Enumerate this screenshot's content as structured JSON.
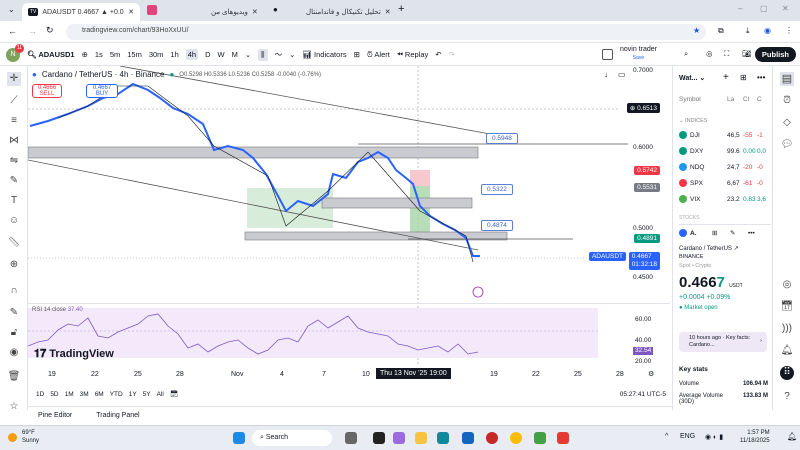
{
  "browser": {
    "tabs": [
      {
        "label": "ADAUSDT 0.4667 ▲ +0.09% no"
      },
      {
        "label": "ویدیوهای من"
      },
      {
        "label": "تحلیل تکنیکال و فاندامنتال"
      }
    ],
    "url": "tradingview.com/chart/93HoXxUU/"
  },
  "toolbar": {
    "avatar": "N",
    "badge": "11",
    "symbol": "ADAUSD1",
    "intervals": [
      "1s",
      "5m",
      "15m",
      "30m",
      "1h",
      "4h",
      "D",
      "W",
      "M"
    ],
    "active_interval": "4h",
    "indicators": "Indicators",
    "alert": "Alert",
    "replay": "Replay",
    "layout_name": "novin trader",
    "layout_sub": "Save",
    "publish": "Publish"
  },
  "chart": {
    "legend_title": "Cardano / TetherUS · 4h · Binance",
    "ohlc": "O0.5298 H0.5336 L0.5236 C0.5258 -0.0040 (-0.76%)",
    "sell_price": "0.4666",
    "sell_label": "SELL",
    "buy_price": "0.4667",
    "buy_label": "BUY",
    "price_axis": [
      "0.7000",
      "0.6000",
      "0.5000",
      "0.4500"
    ],
    "labels": {
      "crosshair": "0.6513",
      "red": "0.5742",
      "gray": "0.5531",
      "green": "0.4891",
      "symbol": "ADAUSDT",
      "last": "0.4667",
      "countdown": "01:32:18"
    },
    "callouts": [
      "0.5948",
      "0.5322",
      "0.4874"
    ],
    "colors": {
      "up": "#2962ff",
      "down": "#131722",
      "red": "#f23645",
      "green": "#089981",
      "rsi": "#7e57c2"
    }
  },
  "rsi": {
    "title": "RSI 14 close",
    "value_inline": "37.40",
    "axis": [
      "60.00",
      "40.00",
      "20.00"
    ],
    "value": "32.54"
  },
  "watermark": "TradingView",
  "time_axis": {
    "ticks": [
      "19",
      "22",
      "25",
      "28",
      "Nov",
      "4",
      "7",
      "10",
      "19",
      "22",
      "25",
      "28"
    ],
    "crosshair": "Thu 13 Nov '25  19:00"
  },
  "ranges": [
    "1D",
    "5D",
    "1M",
    "3M",
    "6M",
    "YTD",
    "1Y",
    "5Y",
    "All"
  ],
  "clock": "05:27:41 UTC-5",
  "bottom_tabs": [
    "Pine Editor",
    "Trading Panel"
  ],
  "watchlist": {
    "title": "Wat...",
    "columns": [
      "Symbol",
      "La",
      "Cl",
      "C"
    ],
    "section": "INDICES",
    "rows": [
      {
        "sym": "DJI",
        "last": "46,5",
        "chg": "-55",
        "pct": "-1",
        "color": "#089981",
        "neg": true
      },
      {
        "sym": "DXY",
        "last": "99.6",
        "chg": "0.00",
        "pct": "0.0",
        "color": "#089981",
        "neg": false
      },
      {
        "sym": "NDQ",
        "last": "24,7",
        "chg": "-20",
        "pct": "-0",
        "color": "#2196f3",
        "neg": true
      },
      {
        "sym": "SPX",
        "last": "6,67",
        "chg": "-61",
        "pct": "-0",
        "color": "#f23645",
        "neg": true
      },
      {
        "sym": "VIX",
        "last": "23.2",
        "chg": "0.83",
        "pct": "3.6",
        "color": "#4caf50",
        "neg": false
      }
    ],
    "stocks": "STOCKS",
    "detail": {
      "short": "A.",
      "name": "Cardano / TetherUS",
      "exchange": "BINANCE",
      "type": "Spot • Crypto",
      "price_main": "0.466",
      "price_last": "7",
      "currency": "USDT",
      "change": "+0.0004  +0.09%",
      "status": "Market open",
      "news": "10 hours ago · Key facts: Cardano...",
      "key_stats": "Key stats",
      "volume_label": "Volume",
      "volume": "106.94 M",
      "avg_label": "Average Volume (30D)",
      "avg": "133.83 M"
    }
  },
  "taskbar": {
    "temp": "69°F",
    "weather": "Sunny",
    "search": "Search",
    "lang": "ENG",
    "time": "1:57 PM",
    "date": "11/18/2025"
  }
}
